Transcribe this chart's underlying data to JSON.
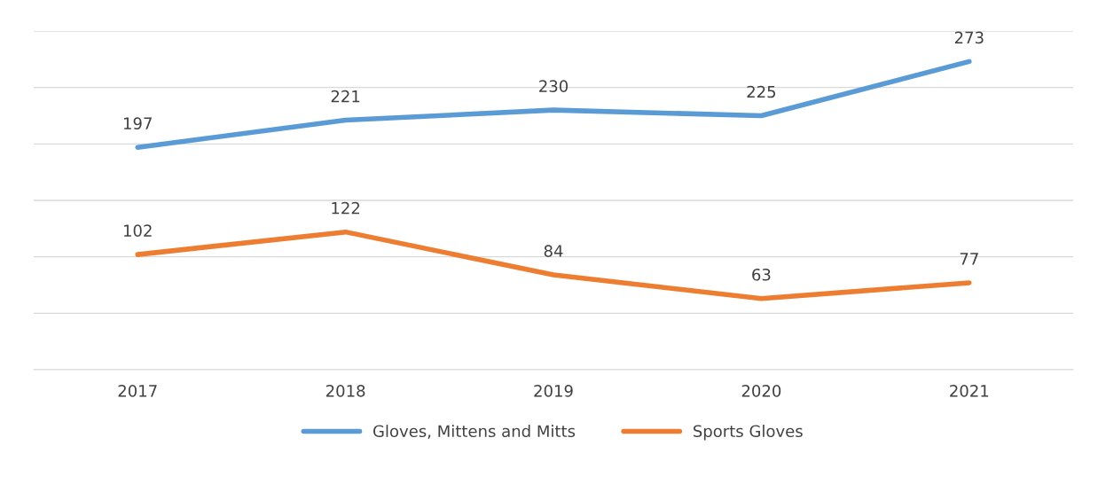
{
  "chart_data": {
    "type": "line",
    "categories": [
      "2017",
      "2018",
      "2019",
      "2020",
      "2021"
    ],
    "series": [
      {
        "name": "Gloves, Mittens and Mitts",
        "color": "#5b9bd5",
        "values": [
          197,
          221,
          230,
          225,
          273
        ]
      },
      {
        "name": "Sports Gloves",
        "color": "#ed7d31",
        "values": [
          102,
          122,
          84,
          63,
          77
        ]
      }
    ],
    "ylim": [
      0,
      300
    ],
    "yticks": [
      {
        "value": 0,
        "label": null
      },
      {
        "value": 50,
        "label": null
      },
      {
        "value": 100,
        "label": null
      },
      {
        "value": 150,
        "label": null
      },
      {
        "value": 200,
        "label": null
      },
      {
        "value": 250,
        "label": null
      },
      {
        "value": 300,
        "label": null
      }
    ],
    "tick_labels": "x",
    "grid": "y",
    "legend": "bottom",
    "data_labels": true,
    "marker": "none",
    "line_style": "solid"
  }
}
